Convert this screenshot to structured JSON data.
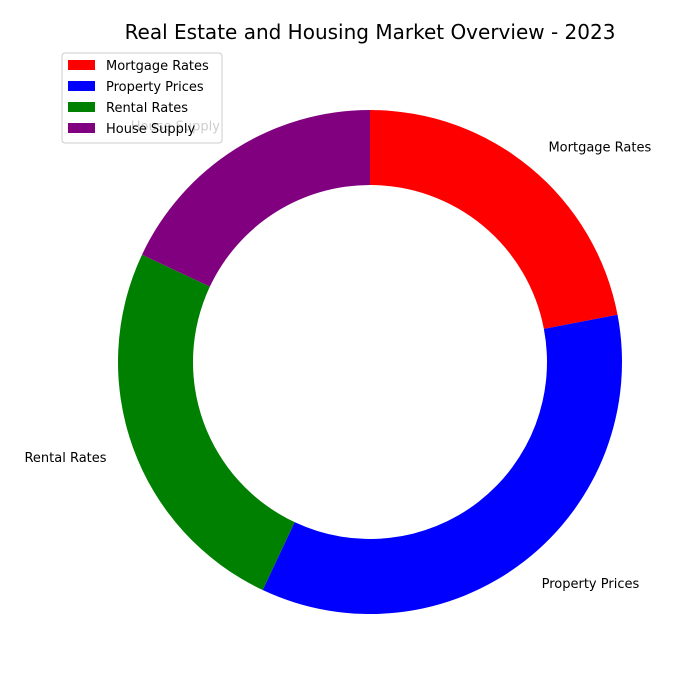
{
  "chart_data": {
    "type": "pie",
    "style": "donut",
    "title": "Real Estate and Housing Market Overview - 2023",
    "start_angle_deg": 90,
    "direction": "clockwise",
    "legend_position": "upper-left",
    "slices": [
      {
        "label": "Mortgage Rates",
        "value": 22,
        "color": "#ff0000"
      },
      {
        "label": "Property Prices",
        "value": 35,
        "color": "#0000ff"
      },
      {
        "label": "Rental Rates",
        "value": 25,
        "color": "#008000"
      },
      {
        "label": "House Supply",
        "value": 18,
        "color": "#800080"
      }
    ]
  }
}
